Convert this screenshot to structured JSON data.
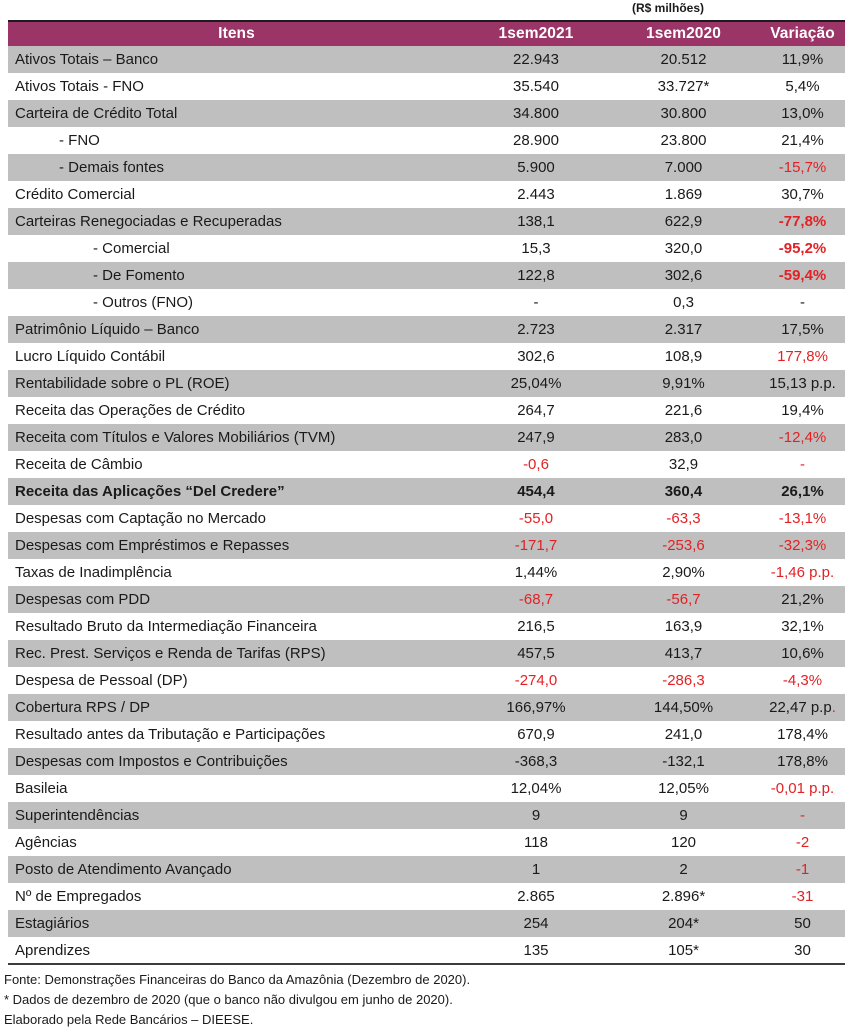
{
  "units_label": "(R$ milhões)",
  "colors": {
    "header_bg": "#9C3567",
    "header_text": "#FFFFFF",
    "row_shade": "#BFBFBF",
    "row_white": "#FFFFFF",
    "negative_red": "#E32124",
    "text": "#1A1A1A",
    "border_top": "#1E1A1C",
    "border_bottom": "#3C3C3C"
  },
  "header": {
    "items": "Itens",
    "sem2021": "1sem2021",
    "sem2020": "1sem2020",
    "variacao": "Variação"
  },
  "rows": [
    {
      "label": "Ativos Totais – Banco",
      "indent": 0,
      "bold": false,
      "v1": "22.943",
      "v2": "20.512",
      "var": "11,9%"
    },
    {
      "label": "Ativos Totais - FNO",
      "indent": 0,
      "bold": false,
      "v1": "35.540",
      "v2": "33.727*",
      "var": "5,4%"
    },
    {
      "label": "Carteira de Crédito Total",
      "indent": 0,
      "bold": false,
      "v1": "34.800",
      "v2": "30.800",
      "var": "13,0%"
    },
    {
      "label": "- FNO",
      "indent": 1,
      "bold": false,
      "v1": "28.900",
      "v2": "23.800",
      "var": "21,4%"
    },
    {
      "label": "- Demais fontes",
      "indent": 1,
      "bold": false,
      "v1": "5.900",
      "v2": "7.000",
      "var": "-15,7%",
      "var_red": true
    },
    {
      "label": "Crédito Comercial",
      "indent": 0,
      "bold": false,
      "v1": "2.443",
      "v2": "1.869",
      "var": "30,7%"
    },
    {
      "label": "Carteiras Renegociadas e Recuperadas",
      "indent": 0,
      "bold": false,
      "v1": "138,1",
      "v2": "622,9",
      "var": "-77,8%",
      "var_red": true,
      "var_bold": true
    },
    {
      "label": "- Comercial",
      "indent": 2,
      "bold": false,
      "v1": "15,3",
      "v2": "320,0",
      "var": "-95,2%",
      "var_red": true,
      "var_bold": true
    },
    {
      "label": "- De Fomento",
      "indent": 2,
      "bold": false,
      "v1": "122,8",
      "v2": "302,6",
      "var": "-59,4%",
      "var_red": true,
      "var_bold": true
    },
    {
      "label": "- Outros (FNO)",
      "indent": 2,
      "bold": false,
      "v1": "-",
      "v2": "0,3",
      "var": "-"
    },
    {
      "label": "Patrimônio Líquido – Banco",
      "indent": 0,
      "bold": false,
      "v1": "2.723",
      "v2": "2.317",
      "var": "17,5%"
    },
    {
      "label": "Lucro Líquido Contábil",
      "indent": 0,
      "bold": false,
      "v1": "302,6",
      "v2": "108,9",
      "var": "177,8%",
      "var_red": true
    },
    {
      "label": "Rentabilidade sobre o PL (ROE)",
      "indent": 0,
      "bold": false,
      "v1": "25,04%",
      "v2": "9,91%",
      "var": "15,13 p.p."
    },
    {
      "label": "Receita das Operações de Crédito",
      "indent": 0,
      "bold": false,
      "v1": "264,7",
      "v2": "221,6",
      "var": "19,4%"
    },
    {
      "label": "Receita com Títulos e Valores Mobiliários (TVM)",
      "indent": 0,
      "bold": false,
      "v1": "247,9",
      "v2": "283,0",
      "var": "-12,4%",
      "var_red": true
    },
    {
      "label": "Receita de Câmbio",
      "indent": 0,
      "bold": false,
      "v1": "-0,6",
      "v1_red": true,
      "v2": "32,9",
      "var": "-",
      "var_red": true
    },
    {
      "label": "Receita das Aplicações “Del Credere”",
      "indent": 0,
      "bold": true,
      "v1": "454,4",
      "v2": "360,4",
      "var": "26,1%"
    },
    {
      "label": "Despesas com Captação no Mercado",
      "indent": 0,
      "bold": false,
      "v1": "-55,0",
      "v1_red": true,
      "v2": "-63,3",
      "v2_red": true,
      "var": "-13,1%",
      "var_red": true
    },
    {
      "label": "Despesas com Empréstimos e Repasses",
      "indent": 0,
      "bold": false,
      "v1": "-171,7",
      "v1_red": true,
      "v2": "-253,6",
      "v2_red": true,
      "var": "-32,3%",
      "var_red": true
    },
    {
      "label": "Taxas de Inadimplência",
      "indent": 0,
      "bold": false,
      "v1": "1,44%",
      "v2": "2,90%",
      "var": "-1,46 p.p.",
      "var_red": true
    },
    {
      "label": "Despesas com PDD",
      "indent": 0,
      "bold": false,
      "v1": "-68,7",
      "v1_red": true,
      "v2": "-56,7",
      "v2_red": true,
      "var": "21,2%"
    },
    {
      "label": "Resultado Bruto da Intermediação Financeira",
      "indent": 0,
      "bold": false,
      "v1": "216,5",
      "v2": "163,9",
      "var": "32,1%"
    },
    {
      "label": "Rec. Prest. Serviços e Renda de Tarifas (RPS)",
      "indent": 0,
      "bold": false,
      "v1": "457,5",
      "v2": "413,7",
      "var": "10,6%"
    },
    {
      "label": "Despesa de Pessoal (DP)",
      "indent": 0,
      "bold": false,
      "v1": "-274,0",
      "v1_red": true,
      "v2": "-286,3",
      "v2_red": true,
      "var": "-4,3%",
      "var_red": true
    },
    {
      "label": "Cobertura RPS / DP",
      "indent": 0,
      "bold": false,
      "v1": "166,97%",
      "v2": "144,50%",
      "var": "22,47 p.p",
      "var_suffix": "."
    },
    {
      "label": "Resultado antes da Tributação e Participações",
      "indent": 0,
      "bold": false,
      "v1": "670,9",
      "v2": "241,0",
      "var": "178,4%"
    },
    {
      "label": "Despesas com Impostos e Contribuições",
      "indent": 0,
      "bold": false,
      "v1": "-368,3",
      "v2": "-132,1",
      "var": "178,8%"
    },
    {
      "label": "Basileia",
      "indent": 0,
      "bold": false,
      "v1": "12,04%",
      "v2": "12,05%",
      "var": "-0,01 p.p.",
      "var_red": true
    },
    {
      "label": "Superintendências",
      "indent": 0,
      "bold": false,
      "v1": "9",
      "v2": "9",
      "var": "-",
      "var_red": true
    },
    {
      "label": "Agências",
      "indent": 0,
      "bold": false,
      "v1": "118",
      "v2": "120",
      "var": "-2",
      "var_red": true
    },
    {
      "label": "Posto de Atendimento Avançado",
      "indent": 0,
      "bold": false,
      "v1": "1",
      "v2": "2",
      "var": "-1",
      "var_red": true
    },
    {
      "label": "Nº de Empregados",
      "indent": 0,
      "bold": false,
      "v1": "2.865",
      "v2": "2.896*",
      "var": "-31",
      "var_red": true
    },
    {
      "label": "Estagiários",
      "indent": 0,
      "bold": false,
      "v1": "254",
      "v2": "204*",
      "var": "50"
    },
    {
      "label": "Aprendizes",
      "indent": 0,
      "bold": false,
      "v1": "135",
      "v2": "105*",
      "var": "30"
    }
  ],
  "footer": {
    "lines": [
      "Fonte: Demonstrações Financeiras do Banco da Amazônia (Dezembro de 2020).",
      "* Dados de dezembro de 2020 (que o banco não divulgou em junho de 2020).",
      "Elaborado pela Rede Bancários – DIEESE."
    ]
  }
}
